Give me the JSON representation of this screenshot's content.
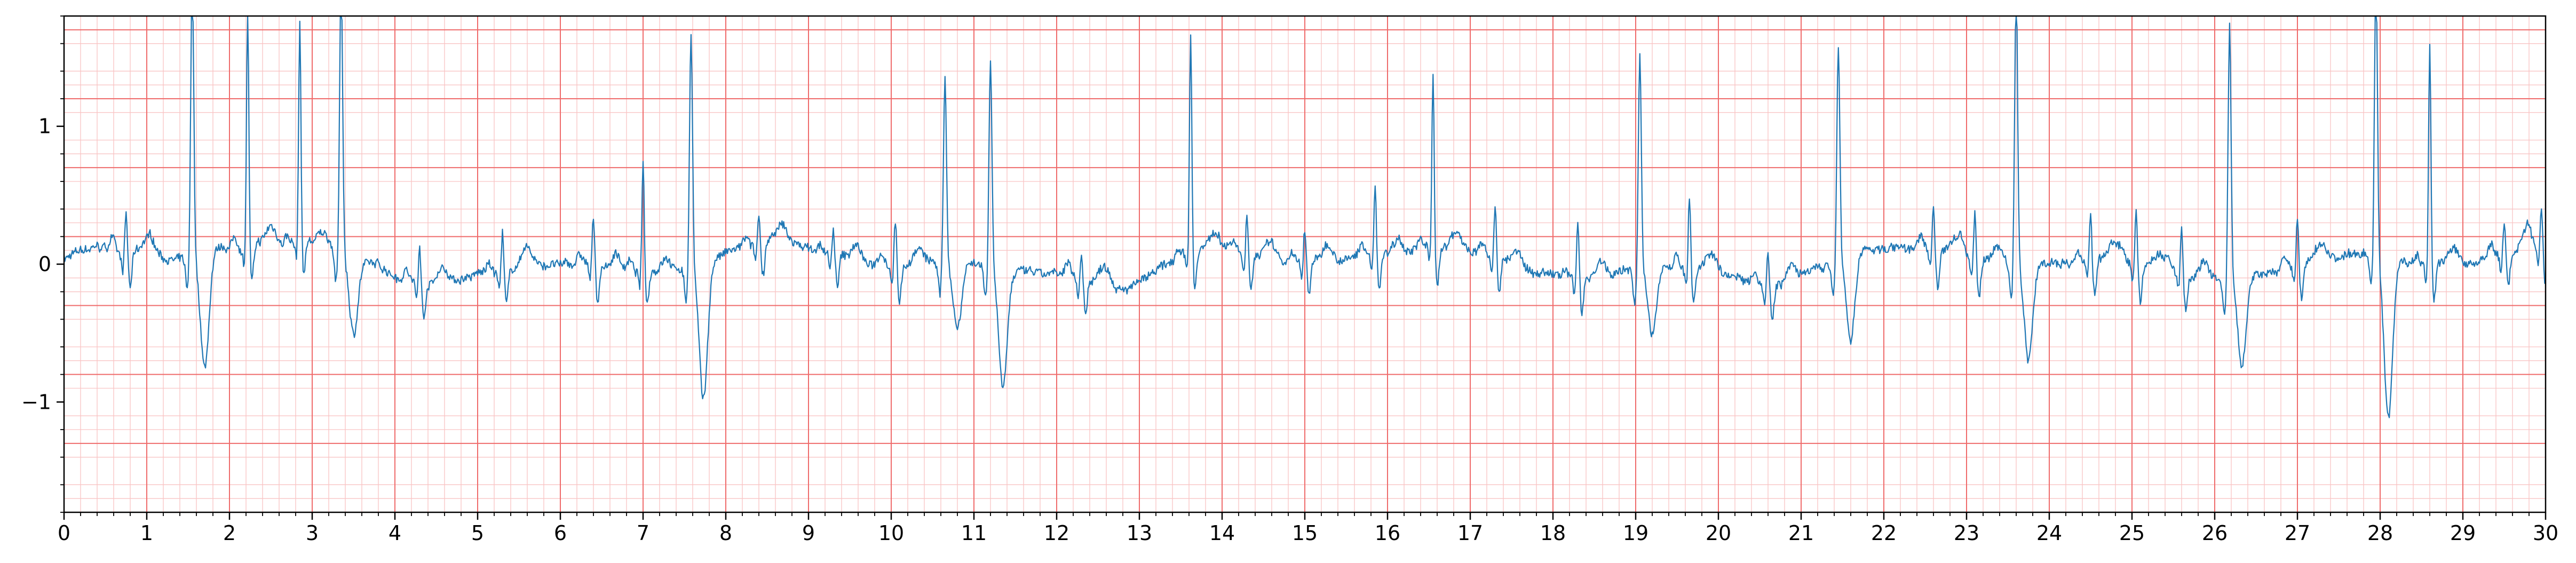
{
  "chart_data": {
    "type": "line",
    "title": "",
    "xlabel": "",
    "ylabel": "",
    "xlim": [
      0,
      30
    ],
    "ylim": [
      -1.8,
      1.8
    ],
    "grid": true,
    "grid_style": "ECG paper: major lines every 1 s / 0.5 mV, minor every 0.2 s / 0.1 mV",
    "xticks": [
      0,
      1,
      2,
      3,
      4,
      5,
      6,
      7,
      8,
      9,
      10,
      11,
      12,
      13,
      14,
      15,
      16,
      17,
      18,
      19,
      20,
      21,
      22,
      23,
      24,
      25,
      26,
      27,
      28,
      29,
      30
    ],
    "xtick_labels": [
      "0",
      "1",
      "2",
      "3",
      "4",
      "5",
      "6",
      "7",
      "8",
      "9",
      "10",
      "11",
      "12",
      "13",
      "14",
      "15",
      "16",
      "17",
      "18",
      "19",
      "20",
      "21",
      "22",
      "23",
      "24",
      "25",
      "26",
      "27",
      "28",
      "29",
      "30"
    ],
    "yticks": [
      -1,
      0,
      1
    ],
    "ytick_labels": [
      "−1",
      "0",
      "1"
    ],
    "series": [
      {
        "sample_rate_hz": 100,
        "beats": [
          {
            "t": 0.75,
            "kind": "n"
          },
          {
            "t": 1.55,
            "kind": "v",
            "peak": 1.9,
            "trough": -0.83
          },
          {
            "t": 2.22,
            "kind": "n",
            "peak": 1.75
          },
          {
            "t": 2.85,
            "kind": "n",
            "peak": 1.58
          },
          {
            "t": 3.35,
            "kind": "v",
            "peak": 1.9,
            "trough": -0.58
          },
          {
            "t": 4.3,
            "kind": "n",
            "peak": 0.3
          },
          {
            "t": 5.3,
            "kind": "n",
            "peak": 0.3
          },
          {
            "t": 6.4,
            "kind": "n",
            "peak": 0.35
          },
          {
            "t": 7.0,
            "kind": "n",
            "peak": 0.78
          },
          {
            "t": 7.58,
            "kind": "v",
            "peak": 1.6,
            "trough": -1.0
          },
          {
            "t": 8.4,
            "kind": "n",
            "peak": 0.2
          },
          {
            "t": 9.3,
            "kind": "n",
            "peak": 0.2
          },
          {
            "t": 10.05,
            "kind": "n",
            "peak": 0.35
          },
          {
            "t": 10.65,
            "kind": "v",
            "peak": 1.25,
            "trough": -0.48
          },
          {
            "t": 11.2,
            "kind": "v",
            "peak": 1.4,
            "trough": -0.85
          },
          {
            "t": 12.3,
            "kind": "n",
            "peak": 0.2
          },
          {
            "t": 13.62,
            "kind": "n",
            "peak": 1.62
          },
          {
            "t": 14.3,
            "kind": "n",
            "peak": 0.3
          },
          {
            "t": 15.0,
            "kind": "n",
            "peak": 0.25
          },
          {
            "t": 15.85,
            "kind": "n",
            "peak": 0.5
          },
          {
            "t": 16.55,
            "kind": "n",
            "peak": 1.28
          },
          {
            "t": 17.3,
            "kind": "n",
            "peak": 0.4
          },
          {
            "t": 18.3,
            "kind": "n",
            "peak": 0.4
          },
          {
            "t": 19.05,
            "kind": "v",
            "peak": 1.45,
            "trough": -0.52
          },
          {
            "t": 19.65,
            "kind": "n",
            "peak": 0.55
          },
          {
            "t": 20.6,
            "kind": "n",
            "peak": 0.25
          },
          {
            "t": 21.45,
            "kind": "v",
            "peak": 1.44,
            "trough": -0.6
          },
          {
            "t": 22.6,
            "kind": "n",
            "peak": 0.35
          },
          {
            "t": 23.1,
            "kind": "n",
            "peak": 0.35
          },
          {
            "t": 23.6,
            "kind": "v",
            "peak": 1.9,
            "trough": -0.7
          },
          {
            "t": 24.5,
            "kind": "n",
            "peak": 0.35
          },
          {
            "t": 25.05,
            "kind": "n",
            "peak": 0.4
          },
          {
            "t": 25.6,
            "kind": "n",
            "peak": 0.35
          },
          {
            "t": 26.18,
            "kind": "v",
            "peak": 1.75,
            "trough": -0.65
          },
          {
            "t": 27.0,
            "kind": "n",
            "peak": 0.35
          },
          {
            "t": 27.95,
            "kind": "v",
            "peak": 1.9,
            "trough": -1.15
          },
          {
            "t": 28.6,
            "kind": "n",
            "peak": 1.6
          },
          {
            "t": 29.5,
            "kind": "n",
            "peak": 0.25
          },
          {
            "t": 29.95,
            "kind": "n",
            "peak": 0.33
          }
        ]
      }
    ]
  },
  "colors": {
    "major_grid": "#ef6b6b",
    "minor_grid": "#f9c4c4",
    "trace": "#1f77b4",
    "axis": "#000000",
    "text": "#000000"
  }
}
